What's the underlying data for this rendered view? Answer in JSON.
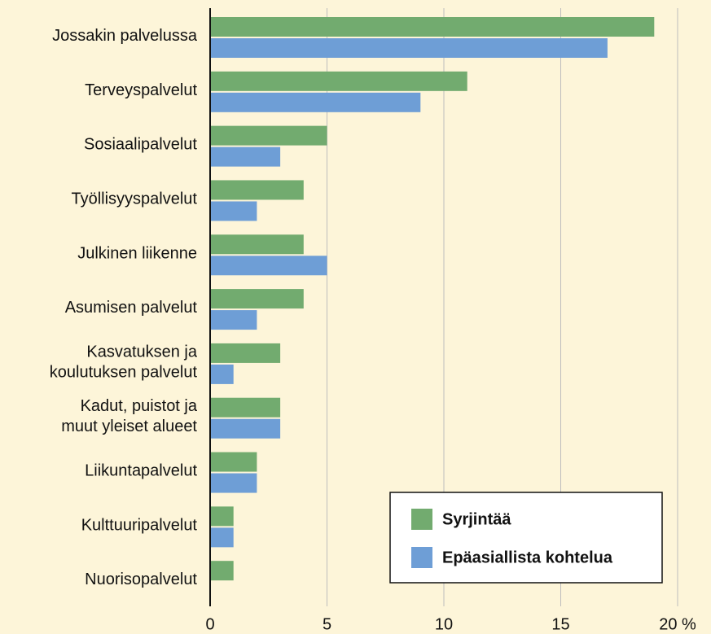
{
  "chart_data": {
    "type": "bar",
    "orientation": "horizontal",
    "categories": [
      "Jossakin palvelussa",
      "Terveyspalvelut",
      "Sosiaalipalvelut",
      "Työllisyyspalvelut",
      "Julkinen liikenne",
      "Asumisen palvelut",
      "Kasvatuksen ja\nkoulutuksen palvelut",
      "Kadut, puistot ja\nmuut yleiset alueet",
      "Liikuntapalvelut",
      "Kulttuuripalvelut",
      "Nuorisopalvelut"
    ],
    "series": [
      {
        "name": "Syrjintää",
        "color": "#72ab6f",
        "values": [
          19,
          11,
          5,
          4,
          4,
          4,
          3,
          3,
          2,
          1,
          1
        ]
      },
      {
        "name": "Epäasiallista kohtelua",
        "color": "#6e9ed6",
        "values": [
          17,
          9,
          3,
          2,
          5,
          2,
          1,
          3,
          2,
          1,
          null
        ]
      }
    ],
    "xlim": [
      0,
      20
    ],
    "xticks": [
      0,
      5,
      10,
      15,
      {
        "value": 20,
        "label": "20 %"
      }
    ],
    "grid": true,
    "legend": "lower right"
  }
}
